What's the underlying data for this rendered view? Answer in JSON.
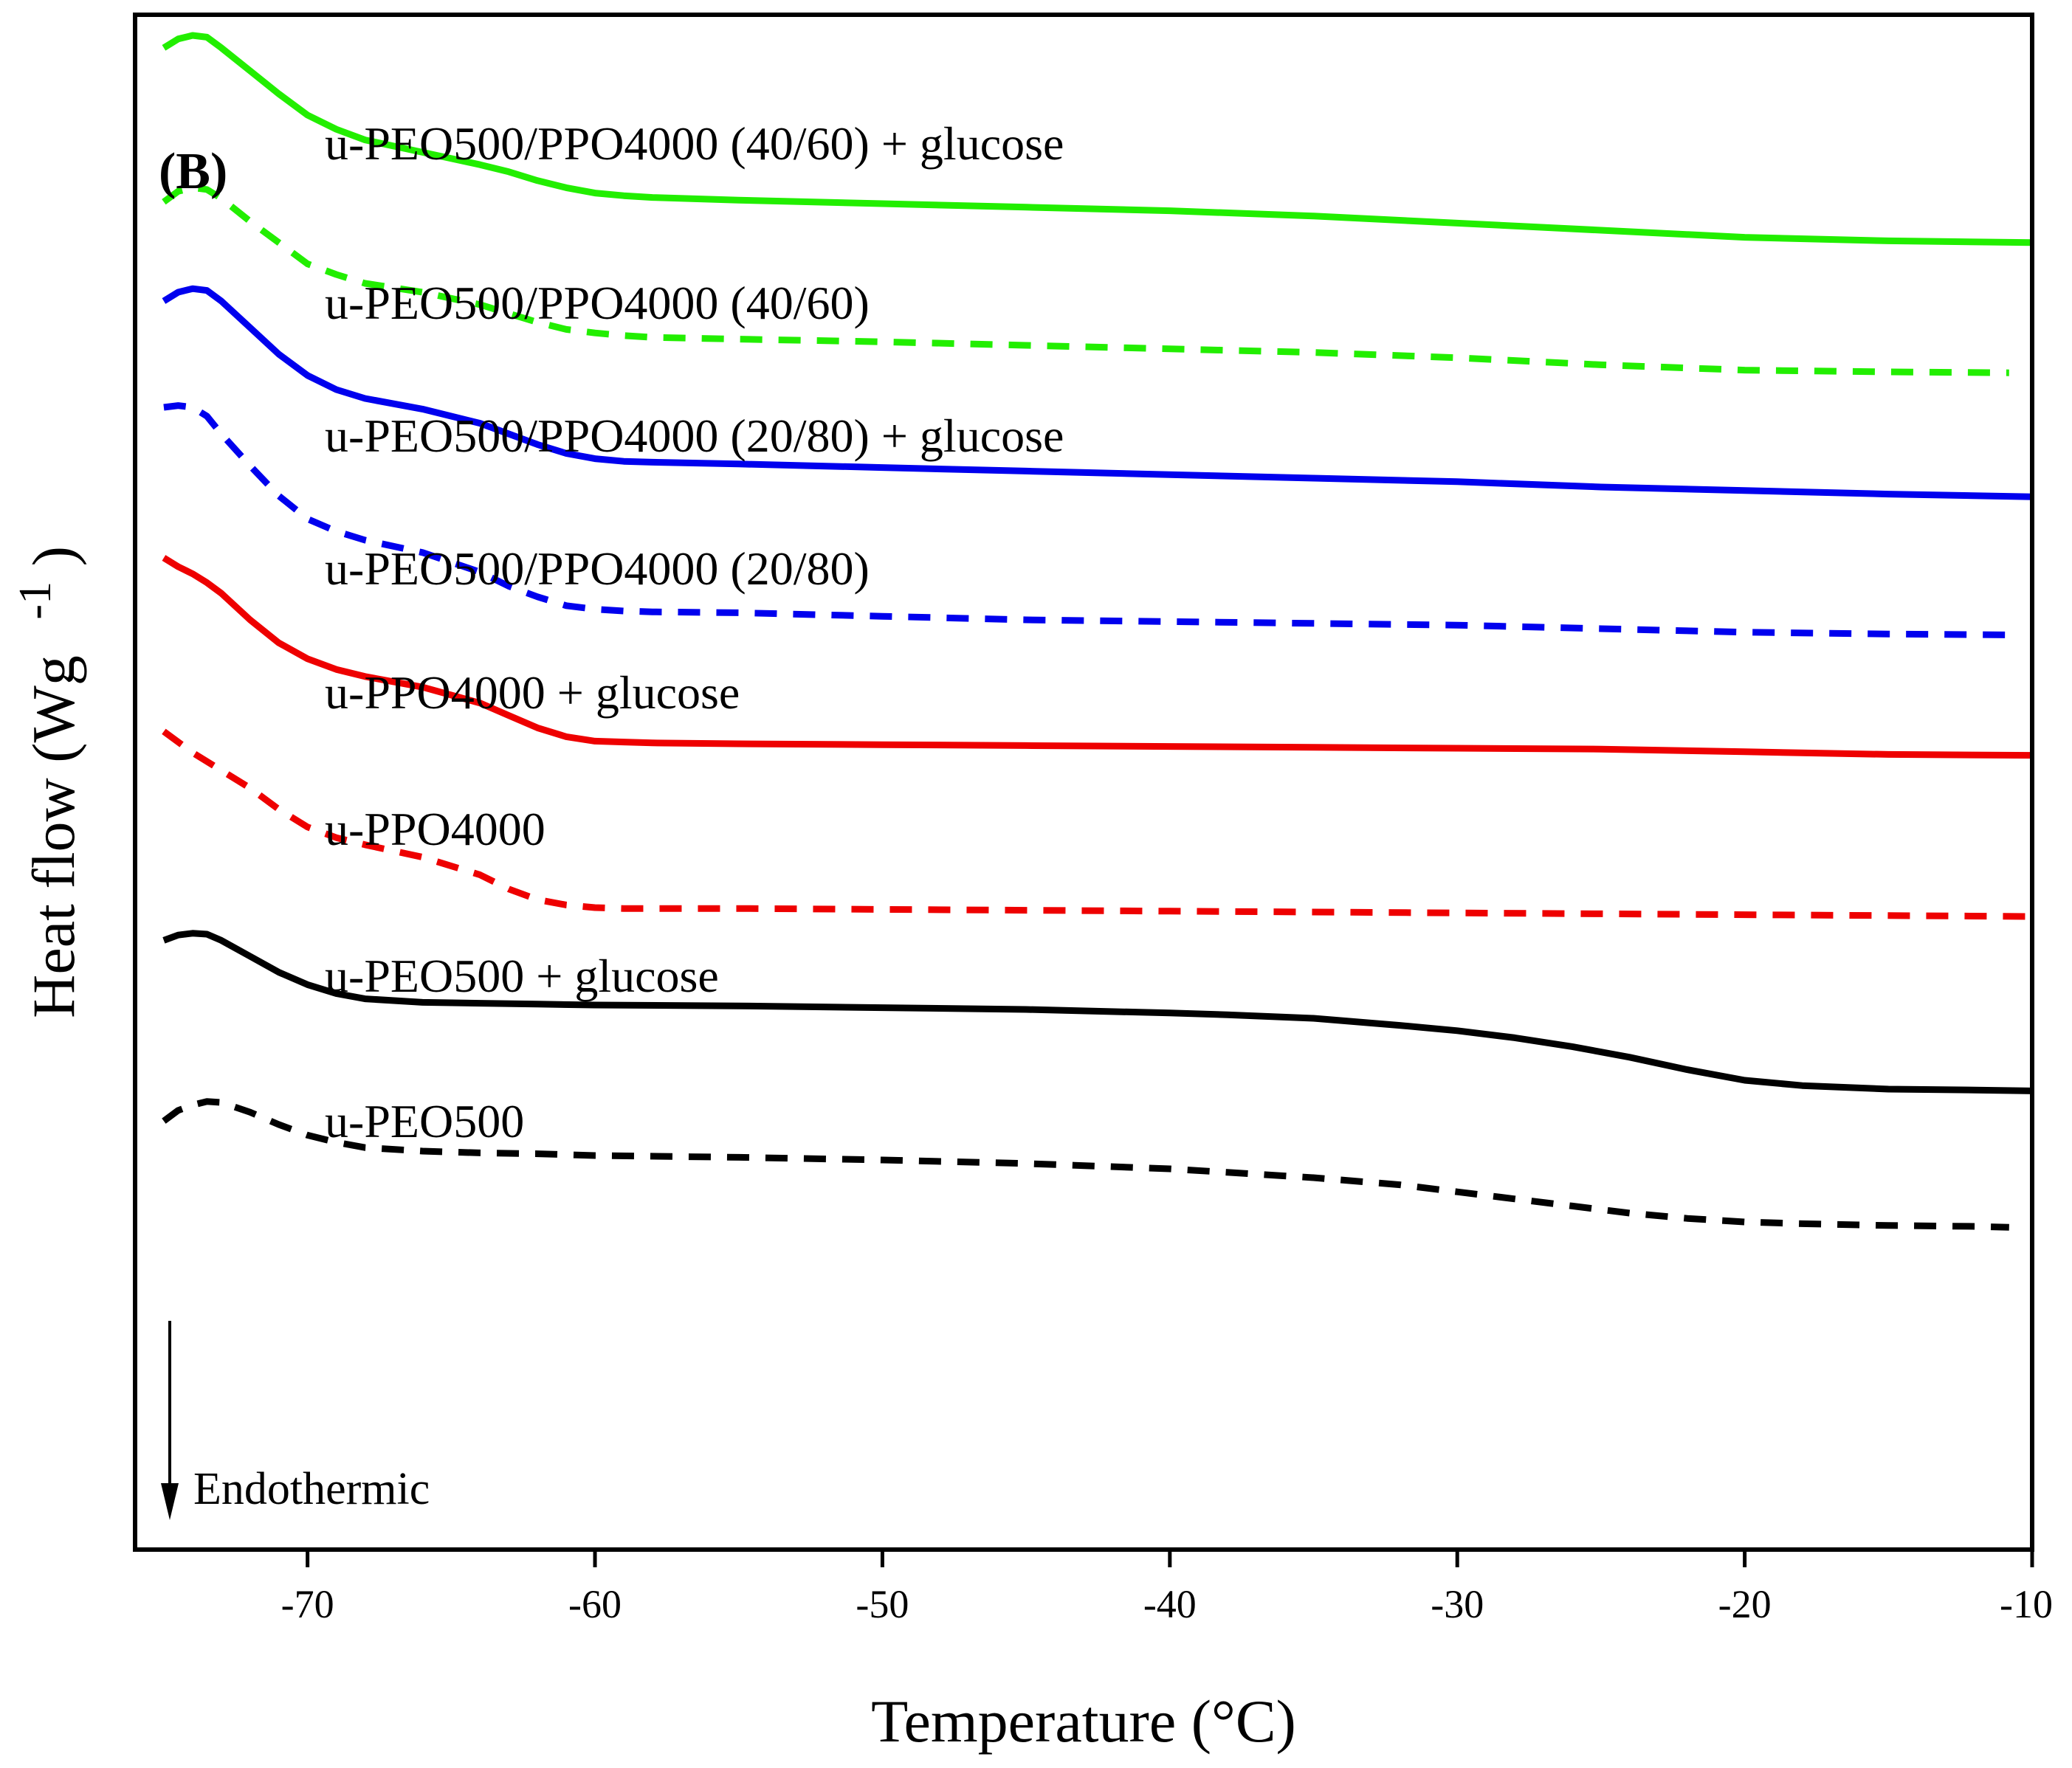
{
  "chart_data": {
    "type": "line",
    "panel_label": "(B)",
    "xlabel": "Temperature (°C)",
    "ylabel_main": "Heat flow (Wg",
    "ylabel_sup": "-1",
    "ylabel_close": ")",
    "xlim": [
      -76,
      -10
    ],
    "x_ticks": [
      -70,
      -60,
      -50,
      -40,
      -30,
      -20,
      -10
    ],
    "y_ticks": [],
    "grid": false,
    "legend": "none",
    "annotation": "Endothermic",
    "series": [
      {
        "name": "u-PEO500/PPO4000 (40/60) + glucose",
        "color": "#22ee00",
        "dash": false,
        "label_x": -69.4,
        "label_y": 8.85,
        "x": [
          -75,
          -74.5,
          -74,
          -73.5,
          -73,
          -72,
          -71,
          -70,
          -69,
          -68,
          -66,
          -64,
          -63,
          -62,
          -61,
          -60,
          -59,
          -58,
          -55,
          -50,
          -45,
          -40,
          -35,
          -30,
          -25,
          -20,
          -15,
          -10
        ],
        "y": [
          9.48,
          9.53,
          9.55,
          9.54,
          9.48,
          9.35,
          9.22,
          9.1,
          9.02,
          8.96,
          8.89,
          8.82,
          8.78,
          8.73,
          8.69,
          8.66,
          8.645,
          8.635,
          8.62,
          8.6,
          8.58,
          8.56,
          8.53,
          8.49,
          8.45,
          8.41,
          8.39,
          8.38
        ]
      },
      {
        "name": "u-PEO500/PPO4000 (40/60)",
        "color": "#22ee00",
        "dash": true,
        "label_x": -69.4,
        "label_y": 7.95,
        "x": [
          -75,
          -74.5,
          -74,
          -73.5,
          -73,
          -72,
          -71,
          -70,
          -69,
          -68,
          -66,
          -64,
          -63,
          -62,
          -61,
          -60,
          -59,
          -58,
          -55,
          -50,
          -45,
          -40,
          -35,
          -30,
          -25,
          -20,
          -15,
          -10.8
        ],
        "y": [
          8.61,
          8.67,
          8.69,
          8.68,
          8.63,
          8.5,
          8.38,
          8.26,
          8.2,
          8.15,
          8.1,
          8.03,
          7.98,
          7.93,
          7.89,
          7.87,
          7.855,
          7.845,
          7.835,
          7.82,
          7.8,
          7.78,
          7.76,
          7.73,
          7.69,
          7.66,
          7.65,
          7.645
        ]
      },
      {
        "name": "u-PEO500/PPO4000 (20/80) + glucose",
        "color": "#0000ee",
        "dash": false,
        "label_x": -69.4,
        "label_y": 7.2,
        "x": [
          -75,
          -74.5,
          -74,
          -73.5,
          -73,
          -72,
          -71,
          -70,
          -69,
          -68,
          -66,
          -64,
          -63,
          -62,
          -61,
          -60,
          -59,
          -58,
          -55,
          -50,
          -45,
          -40,
          -35,
          -30,
          -25,
          -20,
          -15,
          -10
        ],
        "y": [
          8.05,
          8.1,
          8.12,
          8.11,
          8.05,
          7.9,
          7.75,
          7.63,
          7.55,
          7.5,
          7.44,
          7.36,
          7.3,
          7.24,
          7.19,
          7.16,
          7.145,
          7.14,
          7.13,
          7.11,
          7.09,
          7.07,
          7.05,
          7.03,
          7.0,
          6.98,
          6.96,
          6.945
        ]
      },
      {
        "name": "u-PEO500/PPO4000 (20/80)",
        "color": "#0000ee",
        "dash": true,
        "label_x": -69.4,
        "label_y": 6.45,
        "x": [
          -75,
          -74.5,
          -74,
          -73.5,
          -73,
          -72,
          -71,
          -70,
          -69,
          -68,
          -66,
          -64,
          -63,
          -62,
          -61,
          -60,
          -59,
          -58,
          -55,
          -50,
          -45,
          -40,
          -35,
          -30,
          -25,
          -20,
          -15,
          -10.8
        ],
        "y": [
          7.45,
          7.46,
          7.45,
          7.4,
          7.3,
          7.12,
          6.95,
          6.82,
          6.75,
          6.7,
          6.63,
          6.52,
          6.44,
          6.38,
          6.33,
          6.31,
          6.3,
          6.295,
          6.29,
          6.27,
          6.25,
          6.24,
          6.23,
          6.22,
          6.2,
          6.18,
          6.17,
          6.165
        ]
      },
      {
        "name": "u-PPO4000 + glucose",
        "color": "#ee0000",
        "dash": false,
        "label_x": -69.4,
        "label_y": 5.75,
        "x": [
          -75,
          -74.5,
          -74,
          -73.5,
          -73,
          -72,
          -71,
          -70,
          -69,
          -68,
          -66,
          -64,
          -63,
          -62,
          -61,
          -60,
          -59,
          -58,
          -55,
          -50,
          -45,
          -40,
          -35,
          -30,
          -25,
          -20,
          -15,
          -10
        ],
        "y": [
          6.6,
          6.55,
          6.51,
          6.46,
          6.4,
          6.25,
          6.12,
          6.03,
          5.97,
          5.93,
          5.87,
          5.78,
          5.71,
          5.64,
          5.59,
          5.565,
          5.56,
          5.555,
          5.55,
          5.545,
          5.54,
          5.535,
          5.53,
          5.525,
          5.52,
          5.505,
          5.49,
          5.485
        ]
      },
      {
        "name": "u-PPO4000",
        "color": "#ee0000",
        "dash": true,
        "label_x": -69.4,
        "label_y": 4.98,
        "x": [
          -75,
          -74,
          -73,
          -72,
          -71,
          -70,
          -69,
          -68,
          -66,
          -64,
          -63,
          -62,
          -61,
          -60,
          -59,
          -58,
          -55,
          -50,
          -45,
          -40,
          -35,
          -30,
          -25,
          -20,
          -15,
          -10
        ],
        "y": [
          5.62,
          5.5,
          5.4,
          5.3,
          5.18,
          5.08,
          5.02,
          4.98,
          4.91,
          4.81,
          4.73,
          4.67,
          4.64,
          4.625,
          4.62,
          4.62,
          4.62,
          4.615,
          4.61,
          4.605,
          4.6,
          4.595,
          4.59,
          4.585,
          4.58,
          4.575
        ]
      },
      {
        "name": "u-PEO500 + glucose",
        "color": "#000000",
        "dash": false,
        "label_x": -69.4,
        "label_y": 4.15,
        "x": [
          -75,
          -74.5,
          -74,
          -73.5,
          -73,
          -72,
          -71,
          -70,
          -69,
          -68,
          -66,
          -64,
          -62,
          -60,
          -55,
          -50,
          -45,
          -40,
          -38,
          -35,
          -32,
          -30,
          -28,
          -26,
          -24,
          -22,
          -20,
          -18,
          -15,
          -12,
          -10
        ],
        "y": [
          4.44,
          4.47,
          4.48,
          4.475,
          4.44,
          4.35,
          4.26,
          4.19,
          4.14,
          4.11,
          4.09,
          4.085,
          4.08,
          4.075,
          4.07,
          4.06,
          4.05,
          4.03,
          4.02,
          4.0,
          3.96,
          3.93,
          3.89,
          3.84,
          3.78,
          3.71,
          3.65,
          3.62,
          3.6,
          3.595,
          3.59
        ]
      },
      {
        "name": "u-PEO500",
        "color": "#000000",
        "dash": true,
        "label_x": -69.4,
        "label_y": 3.33,
        "x": [
          -75,
          -74.5,
          -74,
          -73.5,
          -73,
          -72,
          -71,
          -70,
          -69,
          -68,
          -66,
          -64,
          -62,
          -60,
          -55,
          -50,
          -45,
          -40,
          -38,
          -35,
          -32,
          -30,
          -28,
          -26,
          -24,
          -22,
          -20,
          -18,
          -15,
          -12,
          -10.8
        ],
        "y": [
          3.42,
          3.48,
          3.51,
          3.53,
          3.525,
          3.47,
          3.4,
          3.34,
          3.3,
          3.27,
          3.25,
          3.24,
          3.235,
          3.225,
          3.215,
          3.2,
          3.18,
          3.15,
          3.13,
          3.1,
          3.06,
          3.02,
          2.98,
          2.94,
          2.9,
          2.87,
          2.85,
          2.84,
          2.83,
          2.825,
          2.82
        ]
      }
    ]
  }
}
